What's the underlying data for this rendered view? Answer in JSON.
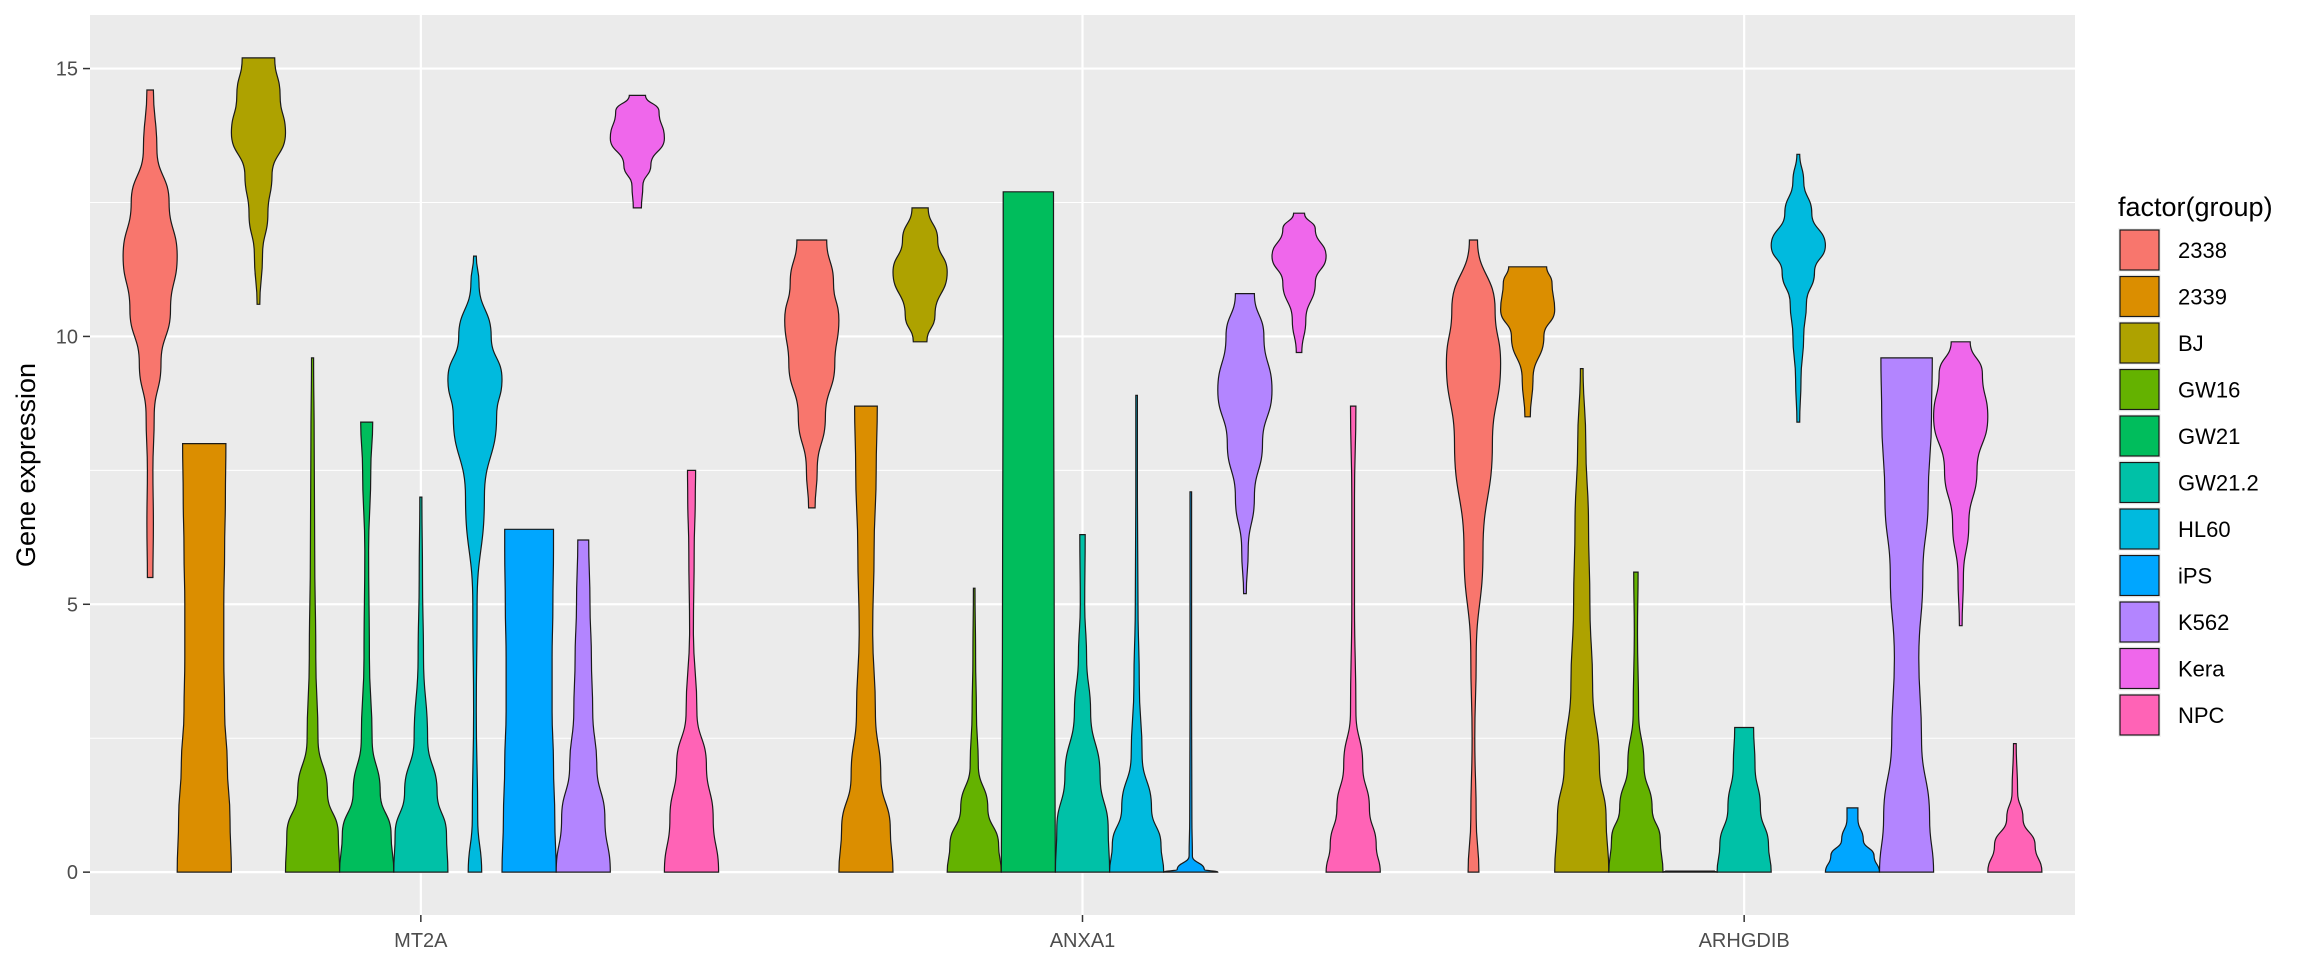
{
  "chart_data": {
    "type": "violin",
    "title": "",
    "xlabel": "",
    "ylabel": "Gene expression",
    "ylim": [
      -0.8,
      16
    ],
    "yticks": [
      0,
      5,
      10,
      15
    ],
    "ytick_labels": [
      "0",
      "5",
      "10",
      "15"
    ],
    "grid": true,
    "panel_background": "#EBEBEB",
    "categories": [
      "MT2A",
      "ANXA1",
      "ARHGDIB"
    ],
    "legend": {
      "title": "factor(group)",
      "placement": "right",
      "entries": [
        {
          "name": "2338",
          "color": "#F8766D"
        },
        {
          "name": "2339",
          "color": "#DB8E00"
        },
        {
          "name": "BJ",
          "color": "#AEA200"
        },
        {
          "name": "GW16",
          "color": "#64B200"
        },
        {
          "name": "GW21",
          "color": "#00BD5C"
        },
        {
          "name": "GW21.2",
          "color": "#00C1A7"
        },
        {
          "name": "HL60",
          "color": "#00BADE"
        },
        {
          "name": "iPS",
          "color": "#00A6FF"
        },
        {
          "name": "K562",
          "color": "#B385FF"
        },
        {
          "name": "Kera",
          "color": "#EF67EB"
        },
        {
          "name": "NPC",
          "color": "#FF63B6"
        }
      ]
    },
    "violins": [
      {
        "gene": "MT2A",
        "group": "2338",
        "min": 5.5,
        "max": 14.6,
        "profile": [
          [
            5.5,
            0.1
          ],
          [
            6.5,
            0.12
          ],
          [
            7.5,
            0.1
          ],
          [
            8.5,
            0.15
          ],
          [
            9.5,
            0.4
          ],
          [
            10.5,
            0.75
          ],
          [
            11.5,
            1.0
          ],
          [
            12.5,
            0.7
          ],
          [
            13.5,
            0.25
          ],
          [
            14.6,
            0.12
          ]
        ]
      },
      {
        "gene": "MT2A",
        "group": "2339",
        "min": 0,
        "max": 8.0,
        "profile": [
          [
            0,
            1.0
          ],
          [
            1,
            0.95
          ],
          [
            2,
            0.85
          ],
          [
            3,
            0.75
          ],
          [
            4,
            0.72
          ],
          [
            5,
            0.72
          ],
          [
            6,
            0.75
          ],
          [
            7,
            0.78
          ],
          [
            8,
            0.8
          ]
        ]
      },
      {
        "gene": "MT2A",
        "group": "BJ",
        "min": 10.6,
        "max": 15.2,
        "profile": [
          [
            10.6,
            0.05
          ],
          [
            11.5,
            0.15
          ],
          [
            12.3,
            0.35
          ],
          [
            13.0,
            0.5
          ],
          [
            13.8,
            1.0
          ],
          [
            14.5,
            0.8
          ],
          [
            15.2,
            0.6
          ]
        ]
      },
      {
        "gene": "MT2A",
        "group": "GW16",
        "min": 0,
        "max": 9.6,
        "profile": [
          [
            0,
            1.0
          ],
          [
            0.7,
            0.95
          ],
          [
            1.5,
            0.55
          ],
          [
            2.5,
            0.2
          ],
          [
            4,
            0.12
          ],
          [
            6,
            0.08
          ],
          [
            8,
            0.06
          ],
          [
            9.6,
            0.04
          ]
        ]
      },
      {
        "gene": "MT2A",
        "group": "GW21",
        "min": 0,
        "max": 8.4,
        "profile": [
          [
            0,
            1.0
          ],
          [
            0.7,
            0.9
          ],
          [
            1.5,
            0.5
          ],
          [
            2.5,
            0.2
          ],
          [
            4,
            0.1
          ],
          [
            6,
            0.07
          ],
          [
            7.5,
            0.15
          ],
          [
            8.4,
            0.22
          ]
        ]
      },
      {
        "gene": "MT2A",
        "group": "GW21.2",
        "min": 0,
        "max": 7.0,
        "profile": [
          [
            0,
            1.0
          ],
          [
            0.7,
            0.95
          ],
          [
            1.5,
            0.6
          ],
          [
            2.5,
            0.25
          ],
          [
            4,
            0.1
          ],
          [
            5.5,
            0.06
          ],
          [
            7.0,
            0.04
          ]
        ]
      },
      {
        "gene": "MT2A",
        "group": "HL60",
        "min": 0,
        "max": 11.5,
        "profile": [
          [
            0,
            0.25
          ],
          [
            1,
            0.1
          ],
          [
            3,
            0.05
          ],
          [
            5,
            0.08
          ],
          [
            7,
            0.35
          ],
          [
            8.5,
            0.8
          ],
          [
            9.2,
            1.0
          ],
          [
            10,
            0.6
          ],
          [
            11,
            0.15
          ],
          [
            11.5,
            0.05
          ]
        ]
      },
      {
        "gene": "MT2A",
        "group": "iPS",
        "min": 0,
        "max": 6.4,
        "profile": [
          [
            0,
            1.0
          ],
          [
            1,
            0.95
          ],
          [
            2,
            0.9
          ],
          [
            3,
            0.85
          ],
          [
            4,
            0.85
          ],
          [
            5,
            0.88
          ],
          [
            6,
            0.9
          ],
          [
            6.4,
            0.9
          ]
        ]
      },
      {
        "gene": "MT2A",
        "group": "K562",
        "min": 0,
        "max": 6.2,
        "profile": [
          [
            0,
            1.0
          ],
          [
            1,
            0.8
          ],
          [
            2,
            0.5
          ],
          [
            3,
            0.35
          ],
          [
            4,
            0.3
          ],
          [
            5,
            0.25
          ],
          [
            6.2,
            0.2
          ]
        ]
      },
      {
        "gene": "MT2A",
        "group": "Kera",
        "min": 12.4,
        "max": 14.5,
        "profile": [
          [
            12.4,
            0.15
          ],
          [
            12.8,
            0.2
          ],
          [
            13.2,
            0.5
          ],
          [
            13.7,
            1.0
          ],
          [
            14.2,
            0.8
          ],
          [
            14.5,
            0.3
          ]
        ]
      },
      {
        "gene": "MT2A",
        "group": "NPC",
        "min": 0,
        "max": 7.5,
        "profile": [
          [
            0,
            1.0
          ],
          [
            1,
            0.8
          ],
          [
            2,
            0.55
          ],
          [
            3,
            0.2
          ],
          [
            4.5,
            0.07
          ],
          [
            6,
            0.1
          ],
          [
            7,
            0.14
          ],
          [
            7.5,
            0.15
          ]
        ]
      },
      {
        "gene": "ANXA1",
        "group": "2338",
        "min": 6.8,
        "max": 11.8,
        "profile": [
          [
            6.8,
            0.12
          ],
          [
            7.5,
            0.2
          ],
          [
            8.5,
            0.5
          ],
          [
            9.5,
            0.85
          ],
          [
            10.3,
            1.0
          ],
          [
            11,
            0.8
          ],
          [
            11.8,
            0.55
          ]
        ]
      },
      {
        "gene": "ANXA1",
        "group": "2339",
        "min": 0,
        "max": 8.7,
        "profile": [
          [
            0,
            1.0
          ],
          [
            0.8,
            0.9
          ],
          [
            1.8,
            0.55
          ],
          [
            3,
            0.35
          ],
          [
            4.5,
            0.25
          ],
          [
            6,
            0.3
          ],
          [
            7.5,
            0.38
          ],
          [
            8.7,
            0.42
          ]
        ]
      },
      {
        "gene": "ANXA1",
        "group": "BJ",
        "min": 9.9,
        "max": 12.4,
        "profile": [
          [
            9.9,
            0.25
          ],
          [
            10.4,
            0.55
          ],
          [
            11.2,
            1.0
          ],
          [
            11.8,
            0.65
          ],
          [
            12.4,
            0.3
          ]
        ]
      },
      {
        "gene": "ANXA1",
        "group": "GW16",
        "min": 0,
        "max": 5.3,
        "profile": [
          [
            0,
            1.0
          ],
          [
            0.5,
            0.9
          ],
          [
            1.2,
            0.5
          ],
          [
            2,
            0.15
          ],
          [
            3,
            0.08
          ],
          [
            4,
            0.05
          ],
          [
            5.3,
            0.03
          ]
        ]
      },
      {
        "gene": "ANXA1",
        "group": "GW21",
        "min": 0,
        "max": 12.7,
        "profile": [
          [
            0,
            1.0
          ],
          [
            2,
            0.98
          ],
          [
            4,
            0.96
          ],
          [
            6,
            0.95
          ],
          [
            8,
            0.94
          ],
          [
            10,
            0.93
          ],
          [
            12,
            0.93
          ],
          [
            12.7,
            0.93
          ]
        ]
      },
      {
        "gene": "ANXA1",
        "group": "GW21.2",
        "min": 0,
        "max": 6.3,
        "profile": [
          [
            0,
            1.0
          ],
          [
            0.8,
            0.95
          ],
          [
            1.8,
            0.65
          ],
          [
            3,
            0.3
          ],
          [
            4,
            0.15
          ],
          [
            5,
            0.08
          ],
          [
            6.3,
            0.1
          ]
        ]
      },
      {
        "gene": "ANXA1",
        "group": "HL60",
        "min": 0,
        "max": 8.9,
        "profile": [
          [
            0,
            1.0
          ],
          [
            0.5,
            0.9
          ],
          [
            1.2,
            0.55
          ],
          [
            2.2,
            0.2
          ],
          [
            3.5,
            0.1
          ],
          [
            5,
            0.05
          ],
          [
            7,
            0.03
          ],
          [
            8.9,
            0.02
          ]
        ]
      },
      {
        "gene": "ANXA1",
        "group": "iPS",
        "min": 0,
        "max": 7.1,
        "profile": [
          [
            0,
            1.0
          ],
          [
            0.05,
            0.5
          ],
          [
            0.3,
            0.06
          ],
          [
            1,
            0.04
          ],
          [
            3,
            0.02
          ],
          [
            5,
            0.02
          ],
          [
            7.1,
            0.01
          ]
        ]
      },
      {
        "gene": "ANXA1",
        "group": "K562",
        "min": 5.2,
        "max": 10.8,
        "profile": [
          [
            5.2,
            0.05
          ],
          [
            6,
            0.12
          ],
          [
            7,
            0.35
          ],
          [
            8,
            0.65
          ],
          [
            9,
            1.0
          ],
          [
            10,
            0.7
          ],
          [
            10.8,
            0.35
          ]
        ]
      },
      {
        "gene": "ANXA1",
        "group": "Kera",
        "min": 9.7,
        "max": 12.3,
        "profile": [
          [
            9.7,
            0.1
          ],
          [
            10.3,
            0.25
          ],
          [
            11,
            0.6
          ],
          [
            11.5,
            1.0
          ],
          [
            12,
            0.6
          ],
          [
            12.3,
            0.2
          ]
        ]
      },
      {
        "gene": "ANXA1",
        "group": "NPC",
        "min": 0,
        "max": 8.7,
        "profile": [
          [
            0,
            1.0
          ],
          [
            0.5,
            0.85
          ],
          [
            1.2,
            0.6
          ],
          [
            2,
            0.35
          ],
          [
            3,
            0.1
          ],
          [
            5,
            0.05
          ],
          [
            7,
            0.05
          ],
          [
            8.7,
            0.1
          ]
        ]
      },
      {
        "gene": "ARHGDIB",
        "group": "2338",
        "min": 0,
        "max": 11.8,
        "profile": [
          [
            0,
            0.2
          ],
          [
            1,
            0.1
          ],
          [
            2.5,
            0.05
          ],
          [
            4,
            0.1
          ],
          [
            6,
            0.35
          ],
          [
            8,
            0.7
          ],
          [
            9.5,
            1.0
          ],
          [
            10.5,
            0.8
          ],
          [
            11.8,
            0.15
          ]
        ]
      },
      {
        "gene": "ARHGDIB",
        "group": "2339",
        "min": 8.5,
        "max": 11.3,
        "profile": [
          [
            8.5,
            0.1
          ],
          [
            9.2,
            0.2
          ],
          [
            10,
            0.6
          ],
          [
            10.5,
            1.0
          ],
          [
            11,
            0.9
          ],
          [
            11.3,
            0.7
          ]
        ]
      },
      {
        "gene": "ARHGDIB",
        "group": "BJ",
        "min": 0,
        "max": 9.4,
        "profile": [
          [
            0,
            1.0
          ],
          [
            1,
            0.9
          ],
          [
            2,
            0.65
          ],
          [
            3.5,
            0.4
          ],
          [
            5,
            0.3
          ],
          [
            6.5,
            0.25
          ],
          [
            8,
            0.15
          ],
          [
            9.4,
            0.05
          ]
        ]
      },
      {
        "gene": "ARHGDIB",
        "group": "GW16",
        "min": 0,
        "max": 5.6,
        "profile": [
          [
            0,
            1.0
          ],
          [
            0.6,
            0.9
          ],
          [
            1.2,
            0.6
          ],
          [
            2,
            0.3
          ],
          [
            3,
            0.1
          ],
          [
            4.5,
            0.06
          ],
          [
            5.6,
            0.08
          ]
        ]
      },
      {
        "gene": "ARHGDIB",
        "group": "GW21",
        "min": 0,
        "max": 0.02,
        "profile": [
          [
            0,
            1.0
          ],
          [
            0.02,
            0.9
          ]
        ]
      },
      {
        "gene": "ARHGDIB",
        "group": "GW21.2",
        "min": 0,
        "max": 2.7,
        "profile": [
          [
            0,
            1.0
          ],
          [
            0.5,
            0.9
          ],
          [
            1.2,
            0.6
          ],
          [
            2,
            0.4
          ],
          [
            2.7,
            0.35
          ]
        ]
      },
      {
        "gene": "ARHGDIB",
        "group": "HL60",
        "min": 8.4,
        "max": 13.4,
        "profile": [
          [
            8.4,
            0.05
          ],
          [
            9.2,
            0.1
          ],
          [
            10,
            0.2
          ],
          [
            10.6,
            0.3
          ],
          [
            11.2,
            0.6
          ],
          [
            11.7,
            1.0
          ],
          [
            12.3,
            0.5
          ],
          [
            12.9,
            0.2
          ],
          [
            13.4,
            0.05
          ]
        ]
      },
      {
        "gene": "ARHGDIB",
        "group": "iPS",
        "min": 0,
        "max": 1.2,
        "profile": [
          [
            0,
            1.0
          ],
          [
            0.3,
            0.8
          ],
          [
            0.6,
            0.4
          ],
          [
            1.0,
            0.2
          ],
          [
            1.2,
            0.2
          ]
        ]
      },
      {
        "gene": "ARHGDIB",
        "group": "K562",
        "min": 0,
        "max": 9.6,
        "profile": [
          [
            0,
            1.0
          ],
          [
            1,
            0.85
          ],
          [
            2.5,
            0.55
          ],
          [
            4,
            0.45
          ],
          [
            5.5,
            0.6
          ],
          [
            7,
            0.8
          ],
          [
            8.5,
            0.92
          ],
          [
            9.6,
            0.95
          ]
        ]
      },
      {
        "gene": "ARHGDIB",
        "group": "Kera",
        "min": 4.6,
        "max": 9.9,
        "profile": [
          [
            4.6,
            0.05
          ],
          [
            5.5,
            0.1
          ],
          [
            6.5,
            0.3
          ],
          [
            7.5,
            0.6
          ],
          [
            8.5,
            1.0
          ],
          [
            9.3,
            0.8
          ],
          [
            9.9,
            0.35
          ]
        ]
      },
      {
        "gene": "ARHGDIB",
        "group": "NPC",
        "min": 0,
        "max": 2.4,
        "profile": [
          [
            0,
            1.0
          ],
          [
            0.5,
            0.75
          ],
          [
            1,
            0.3
          ],
          [
            1.5,
            0.1
          ],
          [
            2.4,
            0.05
          ]
        ]
      }
    ]
  }
}
